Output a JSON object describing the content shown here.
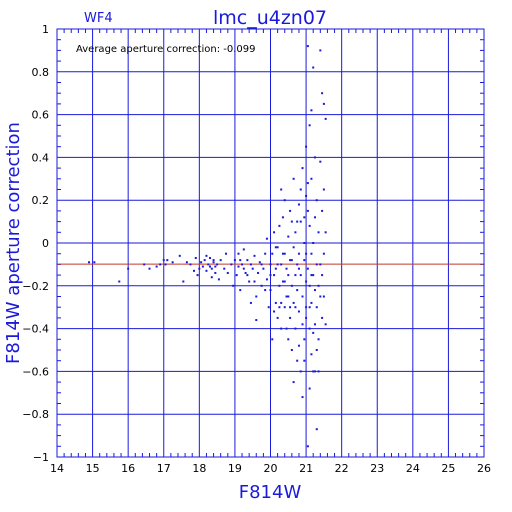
{
  "chart_data": {
    "type": "scatter",
    "panel": "WF4",
    "title": "lmc_u4zn07",
    "xlabel": "F814W",
    "ylabel": "F814W aperture correction",
    "annotation": "Average aperture correction: -0.099",
    "average_correction": -0.099,
    "xlim": [
      14,
      26
    ],
    "ylim": [
      -1,
      1
    ],
    "x_ticks": [
      14,
      15,
      16,
      17,
      18,
      19,
      20,
      21,
      22,
      23,
      24,
      25,
      26
    ],
    "y_ticks": [
      -1,
      -0.8,
      -0.6,
      -0.4,
      -0.2,
      0,
      0.2,
      0.4,
      0.6,
      0.8,
      1
    ],
    "x_tick_labels": [
      "14",
      "15",
      "16",
      "17",
      "18",
      "19",
      "20",
      "21",
      "22",
      "23",
      "24",
      "25",
      "26"
    ],
    "y_tick_labels": [
      "−1",
      "−0.8",
      "−0.6",
      "−0.4",
      "−0.2",
      "0",
      "0.2",
      "0.4",
      "0.6",
      "0.8",
      "1"
    ],
    "grid": true,
    "colors": {
      "axes": "#1a1adb",
      "points": "#1a1adb",
      "reference_line": "#c0392b"
    },
    "points": [
      [
        14.9,
        -0.09
      ],
      [
        15.05,
        -0.09
      ],
      [
        15.75,
        -0.18
      ],
      [
        16.0,
        -0.12
      ],
      [
        16.45,
        -0.1
      ],
      [
        16.6,
        -0.12
      ],
      [
        16.8,
        -0.11
      ],
      [
        16.9,
        -0.1
      ],
      [
        17.0,
        -0.08
      ],
      [
        17.05,
        -0.1
      ],
      [
        17.1,
        -0.08
      ],
      [
        17.25,
        -0.09
      ],
      [
        17.45,
        -0.06
      ],
      [
        17.55,
        -0.18
      ],
      [
        17.65,
        -0.09
      ],
      [
        17.75,
        -0.1
      ],
      [
        17.85,
        -0.13
      ],
      [
        17.9,
        -0.07
      ],
      [
        17.95,
        -0.15
      ],
      [
        18.0,
        -0.12
      ],
      [
        18.05,
        -0.09
      ],
      [
        18.1,
        -0.11
      ],
      [
        18.15,
        -0.08
      ],
      [
        18.2,
        -0.13
      ],
      [
        18.25,
        -0.1
      ],
      [
        18.3,
        -0.07
      ],
      [
        18.35,
        -0.12
      ],
      [
        18.4,
        -0.09
      ],
      [
        18.45,
        -0.14
      ],
      [
        18.5,
        -0.1
      ],
      [
        18.2,
        -0.06
      ],
      [
        18.3,
        -0.11
      ],
      [
        18.35,
        -0.16
      ],
      [
        18.4,
        -0.08
      ],
      [
        18.45,
        -0.11
      ],
      [
        18.55,
        -0.17
      ],
      [
        18.6,
        -0.08
      ],
      [
        18.7,
        -0.12
      ],
      [
        18.75,
        -0.05
      ],
      [
        18.8,
        -0.14
      ],
      [
        18.9,
        -0.1
      ],
      [
        18.95,
        -0.2
      ],
      [
        19.0,
        -0.08
      ],
      [
        19.05,
        -0.15
      ],
      [
        19.1,
        -0.11
      ],
      [
        19.1,
        -0.05
      ],
      [
        19.15,
        -0.22
      ],
      [
        19.2,
        -0.1
      ],
      [
        19.25,
        -0.03
      ],
      [
        19.3,
        -0.14
      ],
      [
        19.35,
        -0.08
      ],
      [
        19.4,
        -0.18
      ],
      [
        19.45,
        -0.1
      ],
      [
        19.5,
        -0.12
      ],
      [
        19.55,
        -0.06
      ],
      [
        19.6,
        -0.25
      ],
      [
        19.6,
        -0.36
      ],
      [
        19.65,
        -0.14
      ],
      [
        19.7,
        -0.09
      ],
      [
        19.75,
        -0.2
      ],
      [
        19.8,
        -0.12
      ],
      [
        19.85,
        -0.05
      ],
      [
        19.9,
        -0.17
      ],
      [
        19.9,
        0.02
      ],
      [
        19.95,
        -0.3
      ],
      [
        20.0,
        -0.1
      ],
      [
        20.0,
        -0.22
      ],
      [
        20.05,
        -0.05
      ],
      [
        20.05,
        -0.45
      ],
      [
        20.1,
        -0.15
      ],
      [
        20.1,
        0.05
      ],
      [
        20.15,
        -0.28
      ],
      [
        20.15,
        -0.12
      ],
      [
        20.2,
        -0.35
      ],
      [
        20.2,
        -0.02
      ],
      [
        20.25,
        -0.2
      ],
      [
        20.25,
        0.08
      ],
      [
        20.3,
        -0.1
      ],
      [
        20.3,
        -0.4
      ],
      [
        20.3,
        0.25
      ],
      [
        20.35,
        -0.18
      ],
      [
        20.35,
        0.12
      ],
      [
        20.4,
        -0.05
      ],
      [
        20.4,
        -0.3
      ],
      [
        20.4,
        0.2
      ],
      [
        20.45,
        -0.12
      ],
      [
        20.45,
        -0.25
      ],
      [
        20.5,
        0.03
      ],
      [
        20.5,
        -0.45
      ],
      [
        20.5,
        -0.15
      ],
      [
        20.55,
        -0.08
      ],
      [
        20.55,
        -0.35
      ],
      [
        20.55,
        0.15
      ],
      [
        20.6,
        -0.2
      ],
      [
        20.6,
        0.1
      ],
      [
        20.6,
        -0.5
      ],
      [
        20.65,
        -0.02
      ],
      [
        20.65,
        -0.28
      ],
      [
        20.65,
        0.3
      ],
      [
        20.7,
        -0.15
      ],
      [
        20.7,
        -0.4
      ],
      [
        20.7,
        0.05
      ],
      [
        20.75,
        -0.1
      ],
      [
        20.75,
        -0.22
      ],
      [
        20.75,
        -0.55
      ],
      [
        20.8,
        0.18
      ],
      [
        20.8,
        -0.05
      ],
      [
        20.8,
        -0.32
      ],
      [
        20.85,
        -0.6
      ],
      [
        20.85,
        -0.15
      ],
      [
        20.85,
        0.1
      ],
      [
        20.9,
        -0.25
      ],
      [
        20.9,
        -0.72
      ],
      [
        20.9,
        0.35
      ],
      [
        20.95,
        -0.08
      ],
      [
        20.95,
        -0.45
      ],
      [
        20.95,
        0.0
      ],
      [
        21.0,
        -0.18
      ],
      [
        21.0,
        0.22
      ],
      [
        21.0,
        -0.3
      ],
      [
        21.0,
        0.45
      ],
      [
        21.0,
        -0.35
      ],
      [
        21.05,
        0.92
      ],
      [
        21.05,
        -0.95
      ],
      [
        21.05,
        -0.12
      ],
      [
        21.05,
        0.15
      ],
      [
        21.1,
        -0.2
      ],
      [
        21.1,
        0.55
      ],
      [
        21.1,
        -0.4
      ],
      [
        21.1,
        0.08
      ],
      [
        21.15,
        -0.05
      ],
      [
        21.15,
        -0.28
      ],
      [
        21.15,
        0.3
      ],
      [
        21.15,
        -0.52
      ],
      [
        21.2,
        0.82
      ],
      [
        21.2,
        -0.15
      ],
      [
        21.2,
        0.0
      ],
      [
        21.2,
        -0.6
      ],
      [
        21.25,
        -0.22
      ],
      [
        21.25,
        0.12
      ],
      [
        21.25,
        -0.38
      ],
      [
        21.3,
        0.2
      ],
      [
        21.3,
        -0.1
      ],
      [
        21.3,
        -0.3
      ],
      [
        21.3,
        -0.87
      ],
      [
        21.35,
        0.05
      ],
      [
        21.35,
        -0.45
      ],
      [
        21.35,
        -0.6
      ],
      [
        21.4,
        -0.25
      ],
      [
        21.4,
        0.38
      ],
      [
        21.4,
        0.9
      ],
      [
        21.45,
        -0.15
      ],
      [
        21.45,
        0.7
      ],
      [
        21.45,
        -0.35
      ],
      [
        21.5,
        -0.05
      ],
      [
        21.5,
        0.25
      ],
      [
        21.5,
        0.65
      ],
      [
        21.55,
        -0.38
      ],
      [
        21.55,
        0.58
      ],
      [
        21.55,
        0.05
      ],
      [
        20.6,
        -0.08
      ],
      [
        20.7,
        -0.3
      ],
      [
        20.8,
        -0.12
      ],
      [
        20.9,
        -0.38
      ],
      [
        21.0,
        -0.05
      ],
      [
        21.1,
        -0.3
      ],
      [
        20.5,
        -0.25
      ],
      [
        20.4,
        -0.18
      ],
      [
        20.3,
        -0.28
      ],
      [
        20.2,
        -0.1
      ],
      [
        20.1,
        -0.32
      ],
      [
        20.0,
        -0.15
      ],
      [
        20.95,
        0.12
      ],
      [
        21.05,
        0.28
      ],
      [
        21.15,
        0.62
      ],
      [
        21.25,
        0.4
      ],
      [
        20.85,
        0.25
      ],
      [
        20.75,
        0.1
      ],
      [
        20.65,
        -0.65
      ],
      [
        20.8,
        -0.48
      ],
      [
        20.95,
        -0.55
      ],
      [
        21.1,
        -0.68
      ],
      [
        21.2,
        -0.42
      ],
      [
        21.3,
        -0.5
      ],
      [
        20.55,
        -0.3
      ],
      [
        20.45,
        -0.4
      ],
      [
        20.35,
        -0.05
      ],
      [
        20.25,
        -0.3
      ],
      [
        20.15,
        -0.02
      ],
      [
        19.85,
        -0.22
      ],
      [
        19.75,
        -0.1
      ],
      [
        19.55,
        -0.18
      ],
      [
        19.45,
        -0.28
      ],
      [
        19.35,
        -0.15
      ],
      [
        19.25,
        -0.12
      ],
      [
        19.15,
        -0.08
      ],
      [
        21.4,
        -0.1
      ],
      [
        21.45,
        0.15
      ],
      [
        21.5,
        -0.25
      ],
      [
        21.35,
        -0.2
      ],
      [
        21.25,
        -0.6
      ],
      [
        21.15,
        -0.15
      ]
    ]
  }
}
